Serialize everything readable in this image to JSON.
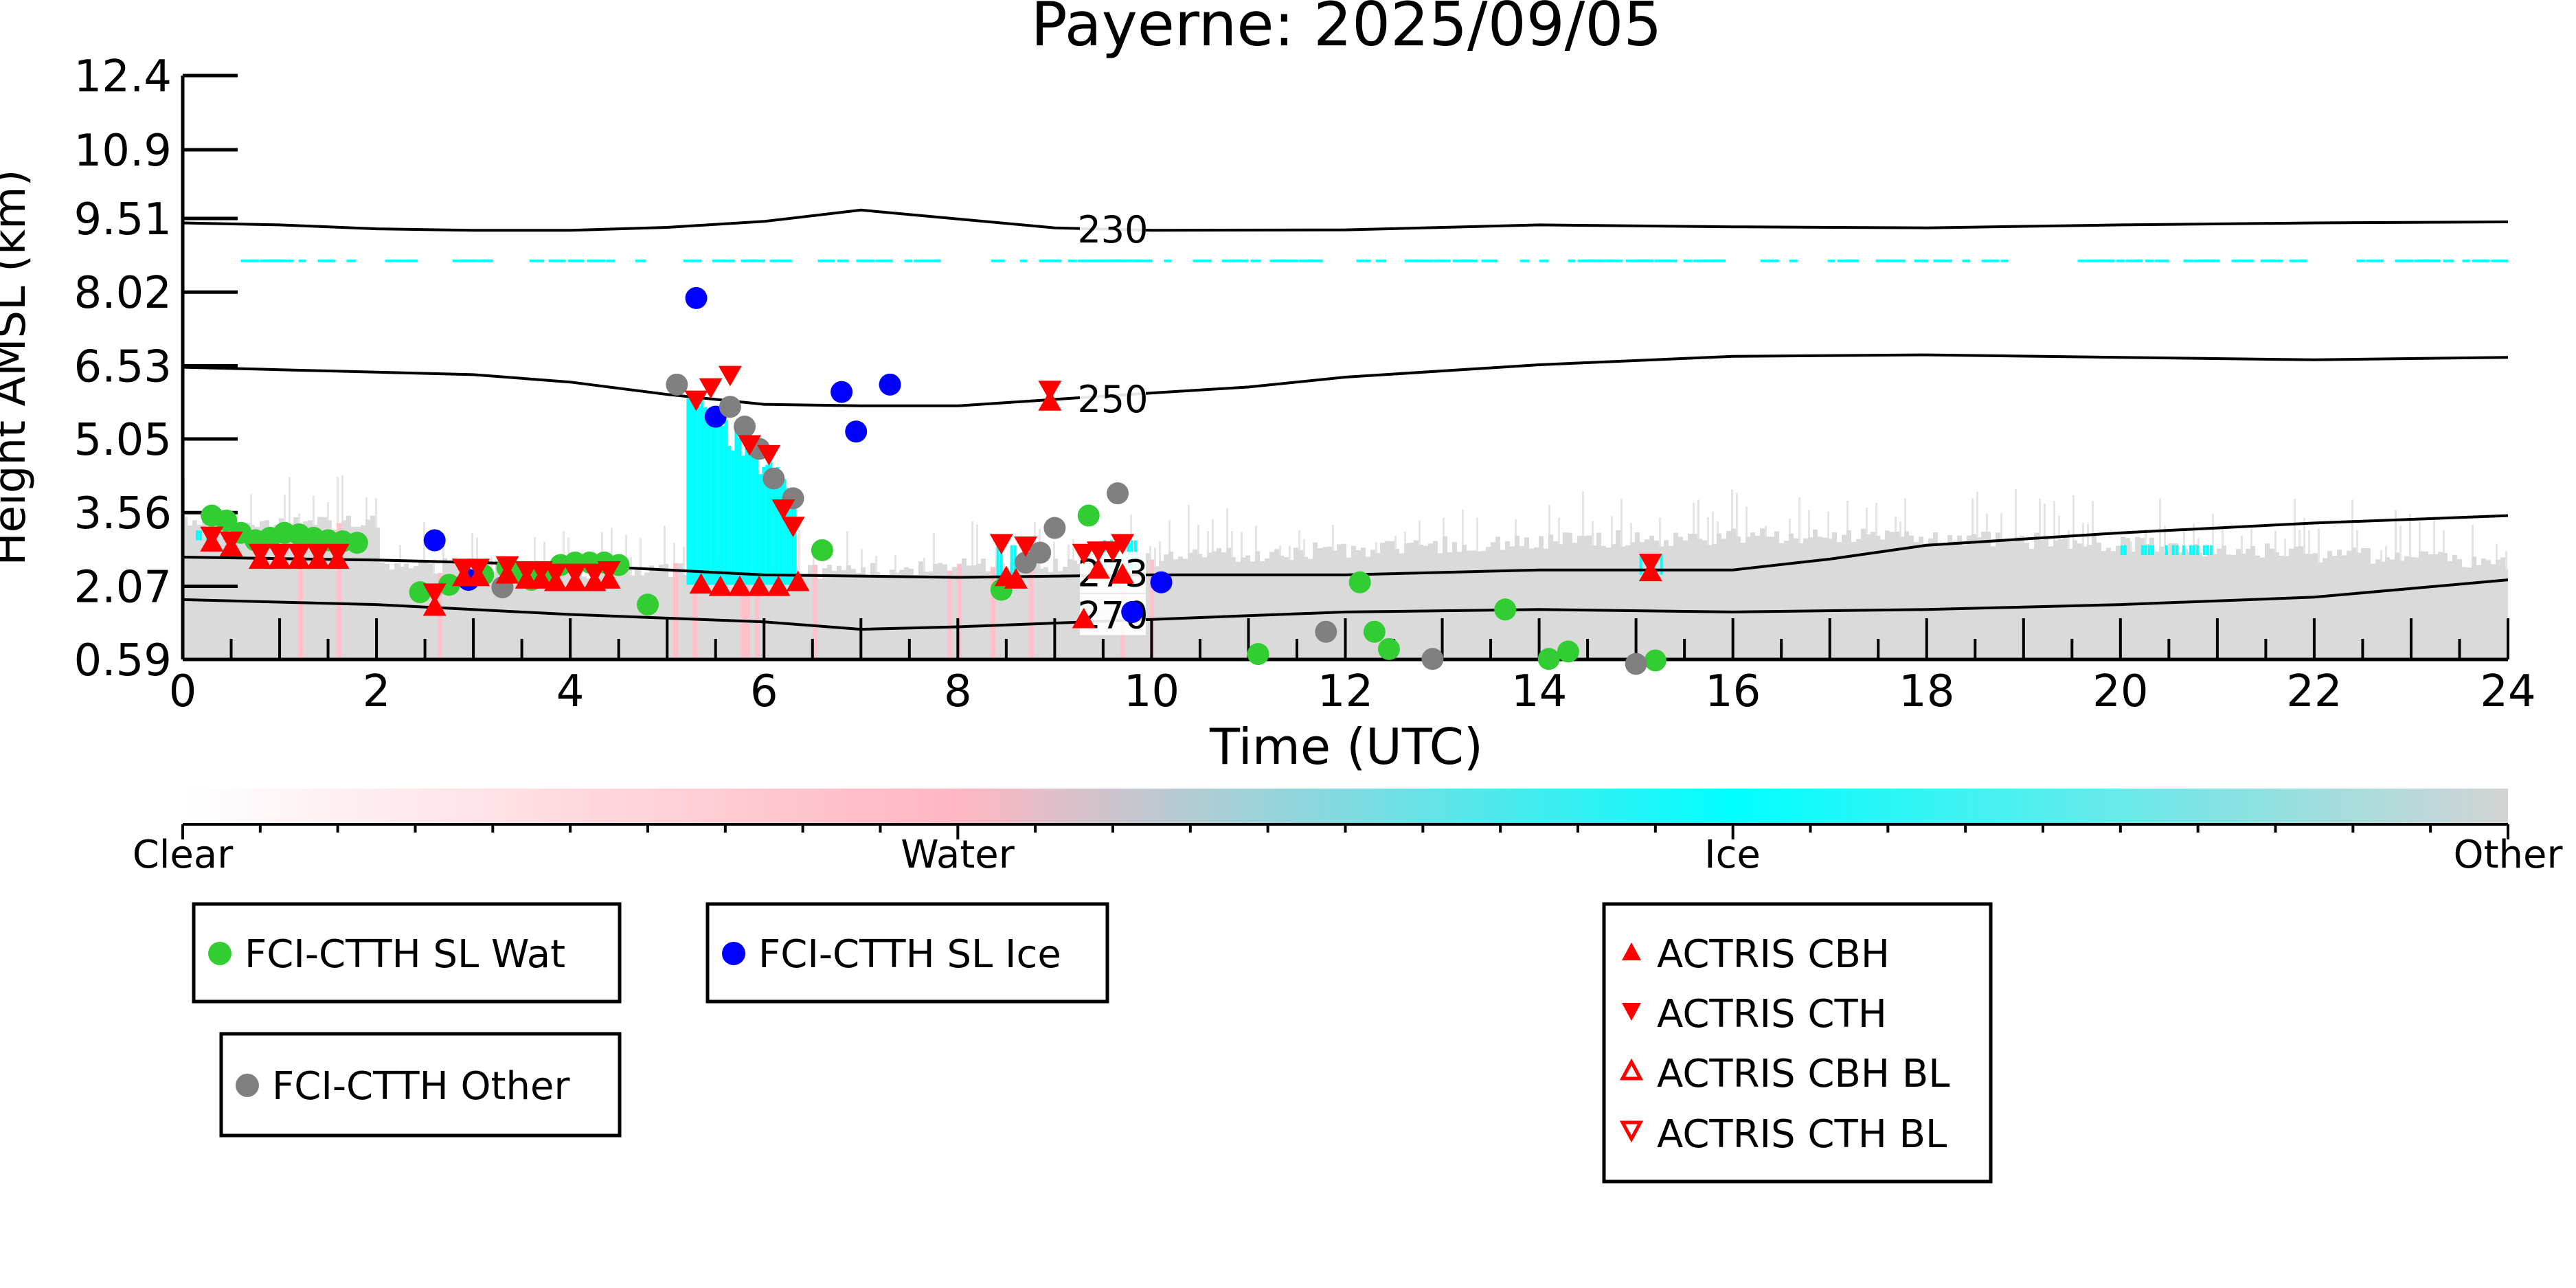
{
  "chart_data": {
    "type": "scatter",
    "title": "Payerne: 2025/09/05",
    "xlabel": "Time (UTC)",
    "ylabel": "Height AMSL (km)",
    "xlim": [
      0,
      24
    ],
    "ylim": [
      0.59,
      12.4
    ],
    "x_ticks": [
      "0",
      "2",
      "4",
      "6",
      "8",
      "10",
      "12",
      "14",
      "16",
      "18",
      "20",
      "22",
      "24"
    ],
    "y_ticks": [
      "0.59",
      "2.07",
      "3.56",
      "5.05",
      "6.53",
      "8.02",
      "9.51",
      "10.9",
      "12.4"
    ],
    "colorbar": {
      "labels": [
        "Clear",
        "Water",
        "Ice",
        "Other"
      ],
      "colors": [
        "#ffffff",
        "#ffb6c1",
        "#00ffff",
        "#d3d3d3"
      ]
    },
    "contours": [
      {
        "label": "230",
        "points": [
          [
            0,
            9.42
          ],
          [
            1,
            9.38
          ],
          [
            2,
            9.3
          ],
          [
            3,
            9.27
          ],
          [
            4,
            9.27
          ],
          [
            5,
            9.33
          ],
          [
            6,
            9.45
          ],
          [
            7,
            9.68
          ],
          [
            8,
            9.5
          ],
          [
            9,
            9.32
          ],
          [
            10,
            9.27
          ],
          [
            12,
            9.28
          ],
          [
            14,
            9.38
          ],
          [
            16,
            9.34
          ],
          [
            18,
            9.32
          ],
          [
            20,
            9.38
          ],
          [
            22,
            9.42
          ],
          [
            24,
            9.44
          ]
        ]
      },
      {
        "label": "250",
        "points": [
          [
            0,
            6.5
          ],
          [
            1,
            6.45
          ],
          [
            2,
            6.4
          ],
          [
            3,
            6.35
          ],
          [
            4,
            6.2
          ],
          [
            5,
            5.95
          ],
          [
            6,
            5.75
          ],
          [
            7,
            5.72
          ],
          [
            8,
            5.72
          ],
          [
            9,
            5.85
          ],
          [
            10,
            5.98
          ],
          [
            11,
            6.1
          ],
          [
            12,
            6.3
          ],
          [
            14,
            6.55
          ],
          [
            16,
            6.72
          ],
          [
            18,
            6.75
          ],
          [
            20,
            6.7
          ],
          [
            22,
            6.65
          ],
          [
            24,
            6.7
          ]
        ]
      },
      {
        "label": "273",
        "points": [
          [
            0,
            2.66
          ],
          [
            2,
            2.6
          ],
          [
            4,
            2.5
          ],
          [
            6,
            2.3
          ],
          [
            8,
            2.25
          ],
          [
            10,
            2.3
          ],
          [
            12,
            2.3
          ],
          [
            14,
            2.4
          ],
          [
            16,
            2.4
          ],
          [
            17,
            2.62
          ],
          [
            18,
            2.9
          ],
          [
            20,
            3.15
          ],
          [
            22,
            3.35
          ],
          [
            24,
            3.5
          ]
        ]
      },
      {
        "label": "270",
        "points": [
          [
            0,
            1.8
          ],
          [
            2,
            1.7
          ],
          [
            4,
            1.5
          ],
          [
            6,
            1.35
          ],
          [
            7,
            1.2
          ],
          [
            8,
            1.25
          ],
          [
            10,
            1.4
          ],
          [
            12,
            1.55
          ],
          [
            14,
            1.6
          ],
          [
            16,
            1.55
          ],
          [
            18,
            1.6
          ],
          [
            20,
            1.7
          ],
          [
            22,
            1.85
          ],
          [
            24,
            2.2
          ]
        ]
      }
    ],
    "series": [
      {
        "name": "FCI-CTTH SL Wat",
        "color": "#32cd32",
        "marker": "circle",
        "points": [
          [
            0.3,
            3.5
          ],
          [
            0.45,
            3.4
          ],
          [
            0.6,
            3.15
          ],
          [
            0.75,
            3.0
          ],
          [
            0.9,
            3.05
          ],
          [
            1.05,
            3.15
          ],
          [
            1.2,
            3.12
          ],
          [
            1.35,
            3.05
          ],
          [
            1.5,
            3.0
          ],
          [
            1.65,
            2.98
          ],
          [
            1.8,
            2.95
          ],
          [
            2.45,
            1.95
          ],
          [
            2.75,
            2.1
          ],
          [
            3.1,
            2.3
          ],
          [
            3.35,
            2.45
          ],
          [
            3.5,
            2.35
          ],
          [
            3.6,
            2.2
          ],
          [
            3.75,
            2.35
          ],
          [
            3.9,
            2.5
          ],
          [
            4.05,
            2.55
          ],
          [
            4.2,
            2.55
          ],
          [
            4.35,
            2.55
          ],
          [
            4.5,
            2.5
          ],
          [
            4.8,
            1.7
          ],
          [
            6.6,
            2.8
          ],
          [
            8.45,
            2.0
          ],
          [
            9.35,
            3.5
          ],
          [
            11.1,
            0.7
          ],
          [
            12.15,
            2.15
          ],
          [
            12.3,
            1.15
          ],
          [
            12.45,
            0.8
          ],
          [
            13.65,
            1.6
          ],
          [
            14.1,
            0.6
          ],
          [
            14.3,
            0.75
          ],
          [
            15.2,
            0.57
          ]
        ]
      },
      {
        "name": "FCI-CTTH SL Ice",
        "color": "#0000ff",
        "marker": "circle",
        "points": [
          [
            2.6,
            3.0
          ],
          [
            2.95,
            2.2
          ],
          [
            5.3,
            7.9
          ],
          [
            5.5,
            5.5
          ],
          [
            6.8,
            6.0
          ],
          [
            6.95,
            5.2
          ],
          [
            7.3,
            6.15
          ],
          [
            9.8,
            1.55
          ],
          [
            10.1,
            2.15
          ]
        ]
      },
      {
        "name": "FCI-CTTH Other",
        "color": "#808080",
        "marker": "circle",
        "points": [
          [
            3.3,
            2.05
          ],
          [
            5.1,
            6.15
          ],
          [
            5.65,
            5.7
          ],
          [
            5.8,
            5.3
          ],
          [
            5.95,
            4.85
          ],
          [
            6.1,
            4.25
          ],
          [
            6.3,
            3.85
          ],
          [
            8.7,
            2.55
          ],
          [
            8.85,
            2.75
          ],
          [
            9.0,
            3.25
          ],
          [
            9.65,
            3.95
          ],
          [
            11.8,
            1.15
          ],
          [
            12.9,
            0.6
          ],
          [
            15.0,
            0.5
          ]
        ]
      },
      {
        "name": "ACTRIS CBH",
        "color": "#ff0000",
        "marker": "triangle-up",
        "points": [
          [
            0.3,
            2.95
          ],
          [
            0.5,
            2.85
          ],
          [
            0.8,
            2.6
          ],
          [
            1.0,
            2.6
          ],
          [
            1.2,
            2.6
          ],
          [
            1.4,
            2.6
          ],
          [
            1.6,
            2.6
          ],
          [
            2.6,
            1.65
          ],
          [
            2.9,
            2.25
          ],
          [
            3.05,
            2.25
          ],
          [
            3.35,
            2.3
          ],
          [
            3.55,
            2.2
          ],
          [
            3.7,
            2.2
          ],
          [
            3.85,
            2.15
          ],
          [
            4.05,
            2.15
          ],
          [
            4.25,
            2.15
          ],
          [
            4.4,
            2.2
          ],
          [
            5.35,
            2.1
          ],
          [
            5.55,
            2.05
          ],
          [
            5.75,
            2.05
          ],
          [
            5.95,
            2.05
          ],
          [
            6.15,
            2.05
          ],
          [
            6.35,
            2.15
          ],
          [
            8.5,
            2.25
          ],
          [
            8.6,
            2.2
          ],
          [
            8.95,
            5.8
          ],
          [
            9.3,
            1.4
          ],
          [
            9.45,
            2.4
          ],
          [
            9.7,
            2.3
          ],
          [
            15.15,
            2.35
          ]
        ]
      },
      {
        "name": "ACTRIS CTH",
        "color": "#ff0000",
        "marker": "triangle-down",
        "points": [
          [
            0.3,
            3.1
          ],
          [
            0.5,
            3.0
          ],
          [
            0.8,
            2.75
          ],
          [
            1.0,
            2.75
          ],
          [
            1.2,
            2.75
          ],
          [
            1.4,
            2.75
          ],
          [
            1.6,
            2.75
          ],
          [
            2.6,
            1.95
          ],
          [
            2.9,
            2.45
          ],
          [
            3.05,
            2.45
          ],
          [
            3.35,
            2.5
          ],
          [
            3.55,
            2.4
          ],
          [
            3.7,
            2.4
          ],
          [
            3.85,
            2.35
          ],
          [
            4.05,
            2.35
          ],
          [
            4.25,
            2.35
          ],
          [
            4.4,
            2.4
          ],
          [
            5.3,
            5.85
          ],
          [
            5.45,
            6.1
          ],
          [
            5.65,
            6.35
          ],
          [
            5.85,
            4.95
          ],
          [
            6.05,
            4.75
          ],
          [
            6.2,
            3.65
          ],
          [
            6.3,
            3.3
          ],
          [
            8.45,
            2.95
          ],
          [
            8.7,
            2.9
          ],
          [
            8.95,
            6.05
          ],
          [
            9.3,
            2.75
          ],
          [
            9.45,
            2.8
          ],
          [
            9.6,
            2.8
          ],
          [
            9.7,
            2.95
          ],
          [
            15.15,
            2.55
          ]
        ]
      },
      {
        "name": "ACTRIS CBH BL",
        "color": "#ff0000",
        "marker": "triangle-up-open",
        "points": []
      },
      {
        "name": "ACTRIS CTH BL",
        "color": "#ff0000",
        "marker": "triangle-down-open",
        "points": []
      }
    ],
    "legend_boxes": [
      {
        "entries": [
          "FCI-CTTH SL Wat"
        ]
      },
      {
        "entries": [
          "FCI-CTTH SL Ice"
        ]
      },
      {
        "entries": [
          "FCI-CTTH Other"
        ]
      },
      {
        "entries": [
          "ACTRIS CBH",
          "ACTRIS CTH",
          "ACTRIS CBH BL",
          "ACTRIS CTH BL"
        ]
      }
    ]
  }
}
